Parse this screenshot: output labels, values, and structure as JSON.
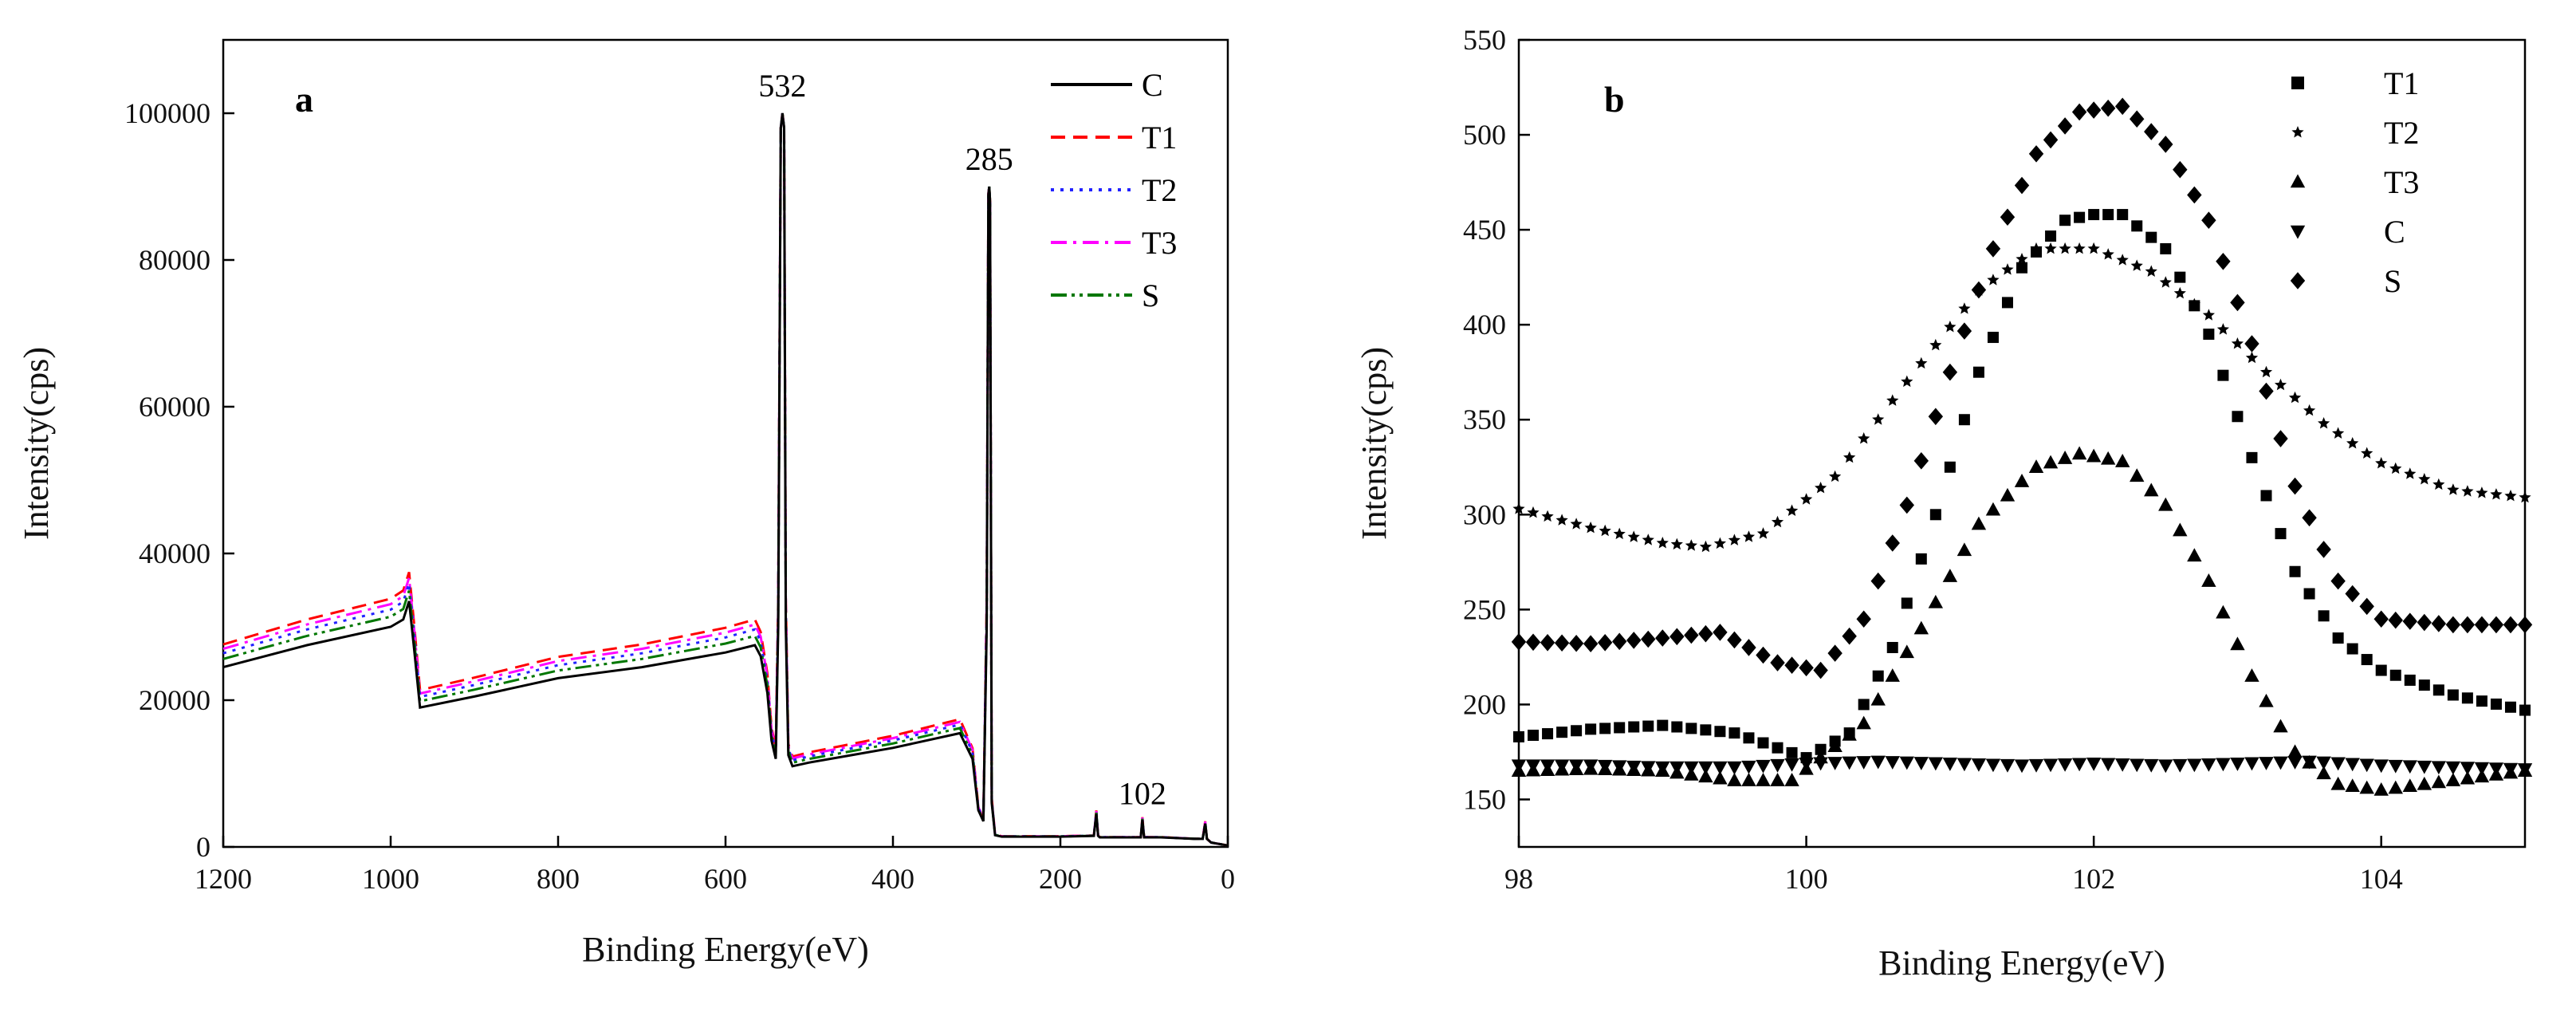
{
  "chart_data": [
    {
      "panel": "a",
      "type": "line",
      "title": "",
      "xlabel": "Binding Energy(eV)",
      "ylabel": "Intensity(cps)",
      "xlim": [
        1200,
        0
      ],
      "ylim": [
        0,
        110000
      ],
      "xticks": [
        1200,
        1000,
        800,
        600,
        400,
        200,
        0
      ],
      "yticks": [
        0,
        20000,
        40000,
        60000,
        80000,
        100000
      ],
      "annotations": [
        {
          "label": "532",
          "x": 532,
          "y": 101000
        },
        {
          "label": "285",
          "x": 285,
          "y": 91000
        },
        {
          "label": "102",
          "x": 102,
          "y": 4500
        }
      ],
      "legend_position": "top-right",
      "series": [
        {
          "name": "C",
          "color": "#000000",
          "dash": "",
          "offset": 0
        },
        {
          "name": "T1",
          "color": "#ff0000",
          "dash": "18,10",
          "offset": 3600
        },
        {
          "name": "T2",
          "color": "#2222ff",
          "dash": "4,8",
          "offset": 2200
        },
        {
          "name": "T3",
          "color": "#ff00ff",
          "dash": "20,8,4,8",
          "offset": 2900
        },
        {
          "name": "S",
          "color": "#007700",
          "dash": "20,6,4,6,4,6",
          "offset": 1300
        }
      ],
      "base_profile": {
        "x": [
          1200,
          1100,
          1000,
          985,
          978,
          972,
          965,
          900,
          800,
          700,
          600,
          565,
          558,
          550,
          545,
          540,
          537,
          534,
          532,
          530,
          528,
          525,
          520,
          500,
          450,
          400,
          320,
          305,
          298,
          292,
          288,
          286,
          285,
          284,
          282,
          278,
          270,
          200,
          160,
          157,
          155,
          153,
          150,
          120,
          104,
          102,
          100,
          80,
          40,
          30,
          27,
          25,
          20,
          0
        ],
        "y": [
          24500,
          27500,
          30000,
          31000,
          33500,
          27000,
          19000,
          20500,
          23000,
          24500,
          26500,
          27500,
          26000,
          21000,
          14500,
          12000,
          30000,
          98000,
          100000,
          98000,
          30000,
          12500,
          11000,
          11500,
          12500,
          13500,
          15500,
          12000,
          5000,
          3500,
          30000,
          89000,
          90000,
          88000,
          6000,
          1600,
          1400,
          1400,
          1500,
          4500,
          1500,
          1300,
          1300,
          1300,
          1300,
          3700,
          1300,
          1300,
          1100,
          1100,
          3200,
          1100,
          600,
          200
        ]
      }
    },
    {
      "panel": "b",
      "type": "scatter",
      "title": "",
      "xlabel": "Binding Energy(eV)",
      "ylabel": "Intensity(cps)",
      "xlim": [
        98,
        105
      ],
      "ylim": [
        125,
        550
      ],
      "xticks": [
        98,
        100,
        102,
        104
      ],
      "yticks": [
        150,
        200,
        250,
        300,
        350,
        400,
        450,
        500,
        550
      ],
      "legend_position": "top-right",
      "series": [
        {
          "name": "T1",
          "marker": "square",
          "x": [
            98,
            98.5,
            99,
            99.5,
            100,
            100.3,
            100.6,
            100.9,
            101.2,
            101.5,
            101.8,
            102.0,
            102.2,
            102.5,
            102.8,
            103.1,
            103.4,
            103.7,
            104.0,
            104.5,
            105
          ],
          "y": [
            183,
            187,
            189,
            185,
            172,
            185,
            230,
            300,
            375,
            430,
            455,
            458,
            458,
            440,
            395,
            330,
            270,
            235,
            218,
            205,
            197
          ]
        },
        {
          "name": "T2",
          "marker": "star",
          "x": [
            98,
            98.5,
            99,
            99.3,
            99.7,
            100.2,
            100.7,
            101.2,
            101.6,
            102.0,
            102.4,
            102.8,
            103.2,
            103.6,
            104.0,
            104.5,
            105
          ],
          "y": [
            303,
            293,
            285,
            283,
            290,
            320,
            370,
            418,
            440,
            440,
            428,
            405,
            375,
            348,
            327,
            313,
            309
          ]
        },
        {
          "name": "T3",
          "marker": "triangle-up",
          "x": [
            98,
            98.5,
            99,
            99.5,
            99.9,
            100.4,
            100.8,
            101.2,
            101.6,
            101.9,
            102.2,
            102.5,
            102.8,
            103.1,
            103.4,
            103.7,
            104.0,
            104.5,
            105
          ],
          "y": [
            165,
            166,
            165,
            160,
            160,
            190,
            240,
            295,
            325,
            332,
            328,
            305,
            265,
            215,
            175,
            158,
            155,
            160,
            165
          ]
        },
        {
          "name": "C",
          "marker": "triangle-down",
          "x": [
            98,
            98.5,
            99,
            99.5,
            100,
            100.5,
            101,
            101.5,
            102,
            102.5,
            103,
            103.5,
            104,
            104.5,
            105
          ],
          "y": [
            168,
            168,
            167,
            167,
            169,
            170,
            169,
            168,
            169,
            168,
            169,
            170,
            168,
            167,
            166
          ]
        },
        {
          "name": "S",
          "marker": "diamond",
          "x": [
            98,
            98.5,
            99,
            99.4,
            99.8,
            100.1,
            100.4,
            100.7,
            101.0,
            101.3,
            101.6,
            101.9,
            102.2,
            102.5,
            102.8,
            103.1,
            103.4,
            103.7,
            104.0,
            104.5,
            105
          ],
          "y": [
            233,
            232,
            235,
            238,
            222,
            218,
            245,
            305,
            375,
            440,
            490,
            512,
            515,
            495,
            455,
            390,
            315,
            265,
            245,
            242,
            242
          ]
        }
      ]
    }
  ]
}
